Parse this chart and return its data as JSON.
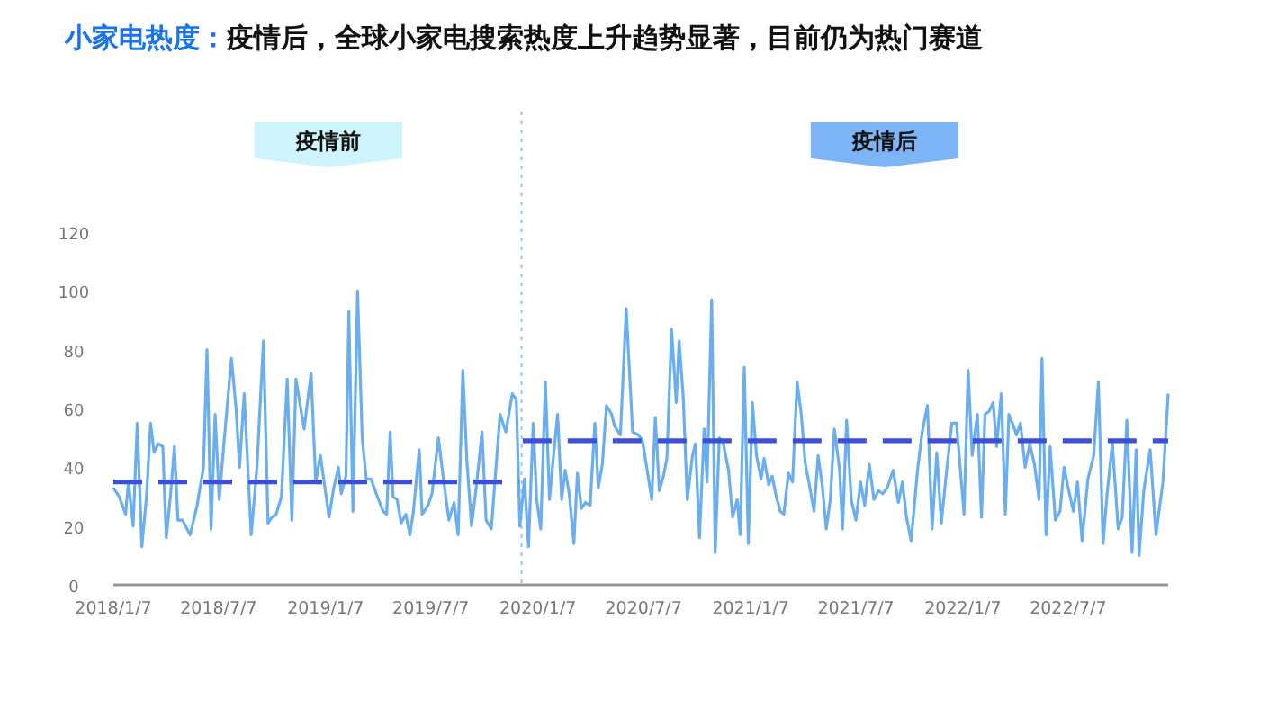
{
  "chart_data": {
    "type": "line",
    "title": "小家电热度：疫情后，全球小家电搜索热度上升趋势显著，目前仍为热门赛道",
    "annotations": [
      "疫情前",
      "疫情后"
    ],
    "xlim": [
      "2018-01-07",
      "2022-12-26"
    ],
    "xticks": [
      {
        "value": "2018-01-07",
        "label": "2018/1/7"
      },
      {
        "value": "2018-07-07",
        "label": "2018/7/7"
      },
      {
        "value": "2019-01-07",
        "label": "2019/1/7"
      },
      {
        "value": "2019-07-07",
        "label": "2019/7/7"
      },
      {
        "value": "2020-01-07",
        "label": "2020/1/7"
      },
      {
        "value": "2020-07-07",
        "label": "2020/7/7"
      },
      {
        "value": "2021-01-07",
        "label": "2021/1/7"
      },
      {
        "value": "2021-07-07",
        "label": "2021/7/7"
      },
      {
        "value": "2022-01-07",
        "label": "2022/1/7"
      },
      {
        "value": "2022-07-07",
        "label": "2022/7/7"
      }
    ],
    "ylim": [
      0,
      120
    ],
    "yticks": [
      0,
      20,
      40,
      60,
      80,
      100,
      120
    ],
    "grid": false,
    "ref_lines": [
      {
        "axis": "x",
        "value": "2019-12-10",
        "color": "#9cc4ee",
        "line_style": "dotted"
      }
    ],
    "series": [
      {
        "color": "#6aaeef",
        "line_style": "solid",
        "x": [
          "2018-01-07",
          "2018-01-17",
          "2018-01-28",
          "2018-02-02",
          "2018-02-10",
          "2018-02-17",
          "2018-02-25",
          "2018-03-05",
          "2018-03-12",
          "2018-03-18",
          "2018-03-25",
          "2018-04-02",
          "2018-04-08",
          "2018-04-15",
          "2018-04-22",
          "2018-04-28",
          "2018-05-06",
          "2018-05-19",
          "2018-05-31",
          "2018-06-11",
          "2018-06-17",
          "2018-06-24",
          "2018-07-01",
          "2018-07-08",
          "2018-07-17",
          "2018-07-29",
          "2018-08-06",
          "2018-08-12",
          "2018-08-20",
          "2018-09-01",
          "2018-09-11",
          "2018-09-22",
          "2018-09-30",
          "2018-10-07",
          "2018-10-14",
          "2018-10-23",
          "2018-11-02",
          "2018-11-10",
          "2018-11-17",
          "2018-12-01",
          "2018-12-13",
          "2018-12-21",
          "2018-12-29",
          "2019-01-13",
          "2019-01-21",
          "2019-01-29",
          "2019-02-03",
          "2019-02-11",
          "2019-02-16",
          "2019-02-23",
          "2019-03-03",
          "2019-03-11",
          "2019-03-18",
          "2019-03-26",
          "2019-04-06",
          "2019-04-16",
          "2019-04-22",
          "2019-04-28",
          "2019-05-03",
          "2019-05-10",
          "2019-05-17",
          "2019-05-25",
          "2019-06-01",
          "2019-06-07",
          "2019-06-17",
          "2019-06-22",
          "2019-07-02",
          "2019-07-09",
          "2019-07-20",
          "2019-07-28",
          "2019-08-07",
          "2019-08-16",
          "2019-08-23",
          "2019-08-31",
          "2019-09-07",
          "2019-09-15",
          "2019-09-23",
          "2019-10-03",
          "2019-10-10",
          "2019-10-19",
          "2019-11-03",
          "2019-11-13",
          "2019-11-24",
          "2019-12-01",
          "2019-12-07",
          "2019-12-15",
          "2019-12-22",
          "2019-12-30",
          "2020-01-05",
          "2020-01-12",
          "2020-01-20",
          "2020-01-27",
          "2020-02-03",
          "2020-02-10",
          "2020-02-17",
          "2020-02-23",
          "2020-03-01",
          "2020-03-09",
          "2020-03-15",
          "2020-03-22",
          "2020-03-29",
          "2020-04-06",
          "2020-04-14",
          "2020-04-20",
          "2020-04-27",
          "2020-05-04",
          "2020-05-13",
          "2020-05-18",
          "2020-05-28",
          "2020-06-07",
          "2020-06-18",
          "2020-06-28",
          "2020-07-05",
          "2020-07-13",
          "2020-07-21",
          "2020-07-27",
          "2020-08-03",
          "2020-08-10",
          "2020-08-16",
          "2020-08-24",
          "2020-09-01",
          "2020-09-06",
          "2020-09-13",
          "2020-09-20",
          "2020-09-29",
          "2020-10-04",
          "2020-10-11",
          "2020-10-19",
          "2020-10-24",
          "2020-11-01",
          "2020-11-07",
          "2020-11-14",
          "2020-11-21",
          "2020-11-30",
          "2020-12-07",
          "2020-12-15",
          "2020-12-20",
          "2020-12-27",
          "2021-01-03",
          "2021-01-10",
          "2021-01-17",
          "2021-01-25",
          "2021-01-30",
          "2021-02-07",
          "2021-02-13",
          "2021-02-20",
          "2021-02-27",
          "2021-03-05",
          "2021-03-13",
          "2021-03-20",
          "2021-03-28",
          "2021-04-04",
          "2021-04-11",
          "2021-04-18",
          "2021-04-26",
          "2021-05-03",
          "2021-05-10",
          "2021-05-17",
          "2021-05-24",
          "2021-05-31",
          "2021-06-09",
          "2021-06-14",
          "2021-06-21",
          "2021-06-29",
          "2021-07-07",
          "2021-07-15",
          "2021-07-22",
          "2021-07-30",
          "2021-08-07",
          "2021-08-15",
          "2021-08-22",
          "2021-08-30",
          "2021-09-09",
          "2021-09-18",
          "2021-09-25",
          "2021-10-02",
          "2021-10-10",
          "2021-10-21",
          "2021-10-29",
          "2021-11-07",
          "2021-11-15",
          "2021-11-23",
          "2021-12-01",
          "2021-12-09",
          "2021-12-19",
          "2021-12-27",
          "2022-01-09",
          "2022-01-16",
          "2022-01-23",
          "2022-02-01",
          "2022-02-08",
          "2022-02-14",
          "2022-02-21",
          "2022-02-28",
          "2022-03-06",
          "2022-03-14",
          "2022-03-21",
          "2022-03-27",
          "2022-04-04",
          "2022-04-09",
          "2022-04-16",
          "2022-04-24",
          "2022-05-02",
          "2022-05-10",
          "2022-05-18",
          "2022-05-23",
          "2022-05-30",
          "2022-06-06",
          "2022-06-15",
          "2022-06-23",
          "2022-06-30",
          "2022-07-07",
          "2022-07-16",
          "2022-07-23",
          "2022-07-31",
          "2022-08-10",
          "2022-08-20",
          "2022-08-28",
          "2022-09-05",
          "2022-09-12",
          "2022-09-21",
          "2022-10-01",
          "2022-10-08",
          "2022-10-16",
          "2022-10-25",
          "2022-11-01",
          "2022-11-06",
          "2022-11-14",
          "2022-11-25",
          "2022-12-05",
          "2022-12-17",
          "2022-12-26"
        ],
        "values": [
          33,
          30,
          24,
          35,
          20,
          55,
          13,
          30,
          55,
          45,
          48,
          47,
          16,
          30,
          47,
          22,
          22,
          17,
          27,
          40,
          80,
          19,
          58,
          29,
          50,
          77,
          60,
          40,
          65,
          17,
          40,
          83,
          21,
          23,
          24,
          30,
          70,
          22,
          70,
          53,
          72,
          35,
          44,
          23,
          33,
          40,
          31,
          37,
          93,
          25,
          100,
          50,
          36,
          36,
          30,
          25,
          24,
          52,
          30,
          29,
          21,
          24,
          17,
          25,
          46,
          24,
          27,
          31,
          50,
          37,
          22,
          28,
          17,
          73,
          42,
          20,
          33,
          52,
          22,
          19,
          58,
          52,
          65,
          63,
          20,
          36,
          13,
          55,
          29,
          19,
          69,
          29,
          44,
          58,
          29,
          39,
          31,
          14,
          38,
          26,
          28,
          27,
          55,
          33,
          41,
          61,
          58,
          54,
          51,
          94,
          52,
          51,
          49,
          39,
          29,
          57,
          32,
          37,
          43,
          87,
          62,
          83,
          64,
          29,
          44,
          48,
          16,
          53,
          35,
          97,
          11,
          50,
          48,
          39,
          23,
          29,
          17,
          74,
          14,
          62,
          44,
          36,
          43,
          34,
          37,
          30,
          25,
          24,
          38,
          35,
          69,
          58,
          41,
          34,
          25,
          44,
          34,
          19,
          29,
          53,
          39,
          19,
          56,
          29,
          22,
          35,
          27,
          41,
          29,
          32,
          31,
          33,
          39,
          28,
          35,
          23,
          15,
          39,
          52,
          61,
          19,
          45,
          21,
          37,
          55,
          55,
          24,
          73,
          44,
          58,
          23,
          58,
          59,
          62,
          47,
          65,
          24,
          58,
          54,
          51,
          55,
          40,
          48,
          41,
          29,
          77,
          17,
          47,
          22,
          25,
          40,
          33,
          25,
          35,
          15,
          36,
          44,
          69,
          14,
          31,
          48,
          19,
          23,
          56,
          11,
          46,
          10,
          32,
          46,
          17,
          35,
          65
        ]
      },
      {
        "type": "line",
        "line_style": "dashed",
        "color": "#3d4fd6",
        "x": [
          "2018-01-07",
          "2019-12-05"
        ],
        "values": [
          35,
          35
        ]
      },
      {
        "type": "line",
        "line_style": "dashed",
        "color": "#3d4fd6",
        "x": [
          "2019-12-12",
          "2022-12-26"
        ],
        "values": [
          49,
          49
        ]
      }
    ]
  }
}
